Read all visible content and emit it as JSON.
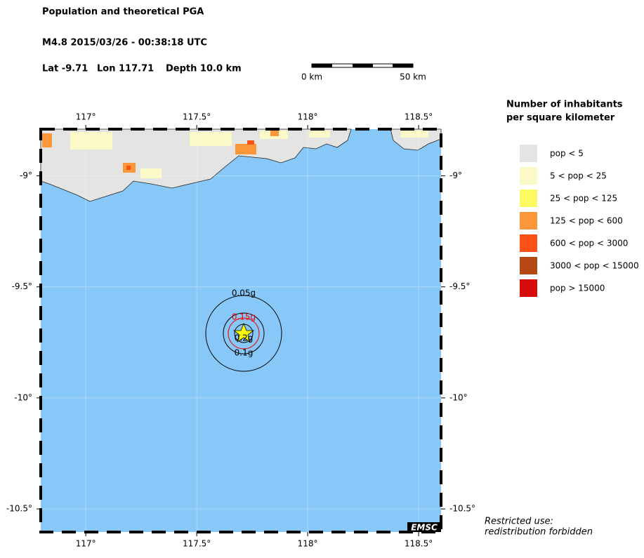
{
  "header": {
    "title": "Population and theoretical PGA",
    "event": "M4.8  2015/03/26 - 00:38:18 UTC",
    "lat": "Lat -9.71",
    "lon": "Lon 117.71",
    "depth": "Depth  10.0 km"
  },
  "scale": {
    "start": "0 km",
    "end": "50 km"
  },
  "map": {
    "lonlim": [
      116.797,
      118.601
    ],
    "latlim": [
      -8.79,
      -10.604
    ],
    "lonticks": [
      {
        "value": 117,
        "label": "117°"
      },
      {
        "value": 117.5,
        "label": "117.5°"
      },
      {
        "value": 118,
        "label": "118°"
      },
      {
        "value": 118.5,
        "label": "118.5°"
      }
    ],
    "latticks": [
      {
        "value": -9,
        "label": "-9°"
      },
      {
        "value": -9.5,
        "label": "-9.5°"
      },
      {
        "value": -10,
        "label": "-10°"
      },
      {
        "value": -10.5,
        "label": "-10.5°"
      }
    ],
    "contours": [
      "0.05g",
      "0.15g",
      "0.2g",
      "0.1g"
    ],
    "credit": "EMSC"
  },
  "legend": {
    "title": [
      "Number of inhabitants",
      "per square kilometer"
    ],
    "items": [
      {
        "label": "pop < 5",
        "color": "#e4e5e2"
      },
      {
        "label": "5 < pop < 25",
        "color": "#fbf9c8"
      },
      {
        "label": "25 < pop < 125",
        "color": "#fcf963"
      },
      {
        "label": "125 < pop < 600",
        "color": "#f9973a"
      },
      {
        "label": "600 < pop < 3000",
        "color": "#fb5116"
      },
      {
        "label": "3000 < pop < 15000",
        "color": "#b54712"
      },
      {
        "label": "pop > 15000",
        "color": "#d80b0b"
      }
    ]
  },
  "notice": [
    "Restricted use:",
    "redistribution forbidden"
  ]
}
